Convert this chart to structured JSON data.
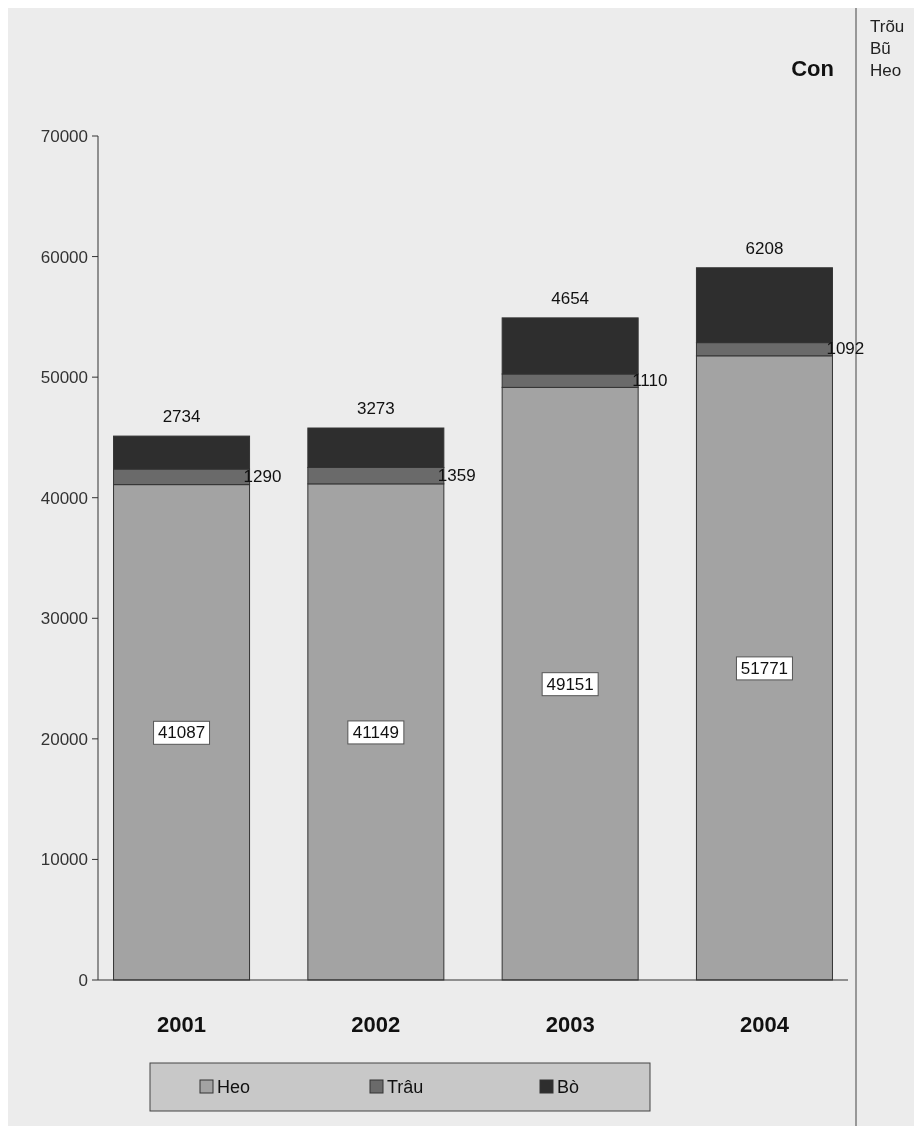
{
  "chart_data": {
    "type": "bar",
    "stacked": true,
    "ylabel": "Con",
    "categories": [
      "2001",
      "2002",
      "2003",
      "2004"
    ],
    "series": [
      {
        "name": "Heo",
        "color": "#a3a3a3",
        "values": [
          41087,
          41149,
          49151,
          51771
        ]
      },
      {
        "name": "Trâu",
        "color": "#6a6a6a",
        "values": [
          1290,
          1359,
          1110,
          1092
        ]
      },
      {
        "name": "Bò",
        "color": "#2e2e2e",
        "values": [
          2734,
          3273,
          4654,
          6208
        ]
      }
    ],
    "ylim": [
      0,
      70000
    ],
    "yticks": [
      0,
      10000,
      20000,
      30000,
      40000,
      50000,
      60000,
      70000
    ],
    "grid": false,
    "legend": "bottom",
    "data_labels": true,
    "annotations": [
      "Trõu",
      "Bũ",
      "Heo"
    ]
  }
}
